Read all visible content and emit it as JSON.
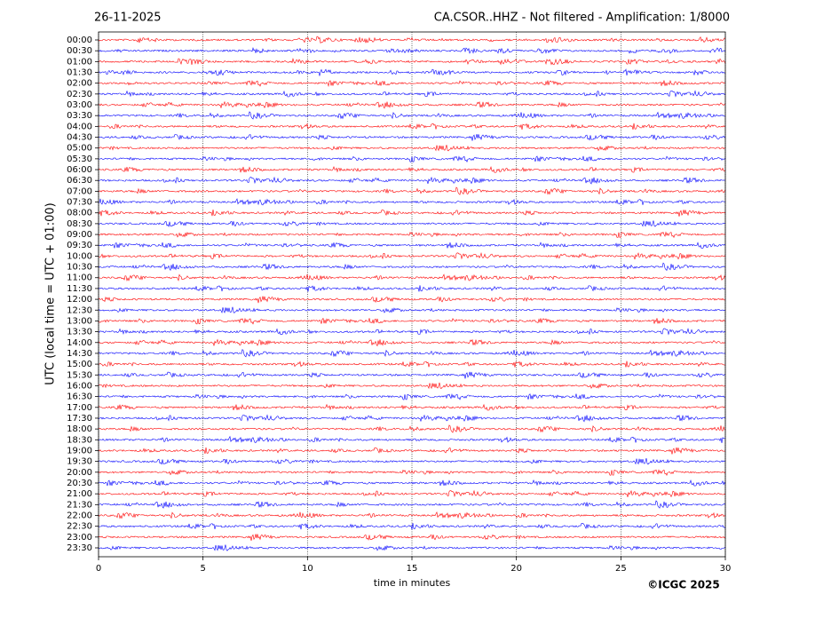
{
  "chart_data": {
    "type": "helicorder",
    "title_left": "26-11-2025",
    "title": "CA.CSOR..HHZ - Not filtered - Amplification: 1/8000",
    "y_label": "UTC (local time = UTC + 01:00)",
    "x_label": "time in minutes",
    "credit": "©ICGC 2025",
    "categories": [
      "00:00",
      "00:30",
      "01:00",
      "01:30",
      "02:00",
      "02:30",
      "03:00",
      "03:30",
      "04:00",
      "04:30",
      "05:00",
      "05:30",
      "06:00",
      "06:30",
      "07:00",
      "07:30",
      "08:00",
      "08:30",
      "09:00",
      "09:30",
      "10:00",
      "10:30",
      "11:00",
      "11:30",
      "12:00",
      "12:30",
      "13:00",
      "13:30",
      "14:00",
      "14:30",
      "15:00",
      "15:30",
      "16:00",
      "16:30",
      "17:00",
      "17:30",
      "18:00",
      "18:30",
      "19:00",
      "19:30",
      "20:00",
      "20:30",
      "21:00",
      "21:30",
      "22:00",
      "22:30",
      "23:00",
      "23:30"
    ],
    "colors": [
      "#ff0000",
      "#0000ff"
    ],
    "xlim": [
      0,
      30
    ],
    "xticks": [
      0,
      5,
      10,
      15,
      20,
      25,
      30
    ],
    "grid": true
  }
}
